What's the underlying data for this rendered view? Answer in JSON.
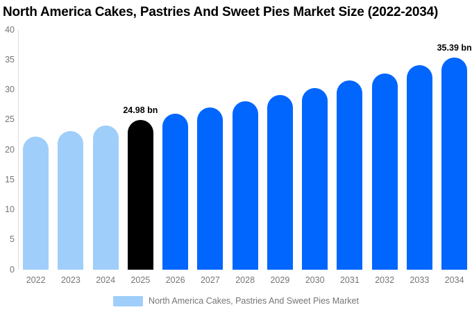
{
  "chart_data": {
    "type": "bar",
    "title": "North America Cakes, Pastries And Sweet Pies Market Size (2022-2034)",
    "categories": [
      "2022",
      "2023",
      "2024",
      "2025",
      "2026",
      "2027",
      "2028",
      "2029",
      "2030",
      "2031",
      "2032",
      "2033",
      "2034"
    ],
    "values": [
      22.24,
      23.12,
      24.03,
      24.98,
      25.97,
      27.0,
      28.06,
      29.17,
      30.32,
      31.52,
      32.77,
      34.06,
      35.39
    ],
    "bar_color_keys": [
      "light",
      "light",
      "light",
      "black",
      "blue",
      "blue",
      "blue",
      "blue",
      "blue",
      "blue",
      "blue",
      "blue",
      "blue"
    ],
    "annotations": [
      {
        "category": "2025",
        "text": "24.98 bn"
      },
      {
        "category": "2034",
        "text": "35.39 bn"
      }
    ],
    "unit": "bn",
    "xlabel": "",
    "ylabel": "",
    "ylim": [
      0,
      40
    ],
    "yticks": [
      0,
      5,
      10,
      15,
      20,
      25,
      30,
      35,
      40
    ],
    "grid": false,
    "legend": {
      "label": "North America Cakes, Pastries And Sweet Pies Market",
      "position": "bottom",
      "swatch_color_key": "light"
    },
    "colors": {
      "light": "#A0CEFA",
      "blue": "#0066FE",
      "black": "#000000",
      "axis_line": "#DCDCDC",
      "tick_text": "#757575",
      "title_text": "#000000"
    }
  }
}
